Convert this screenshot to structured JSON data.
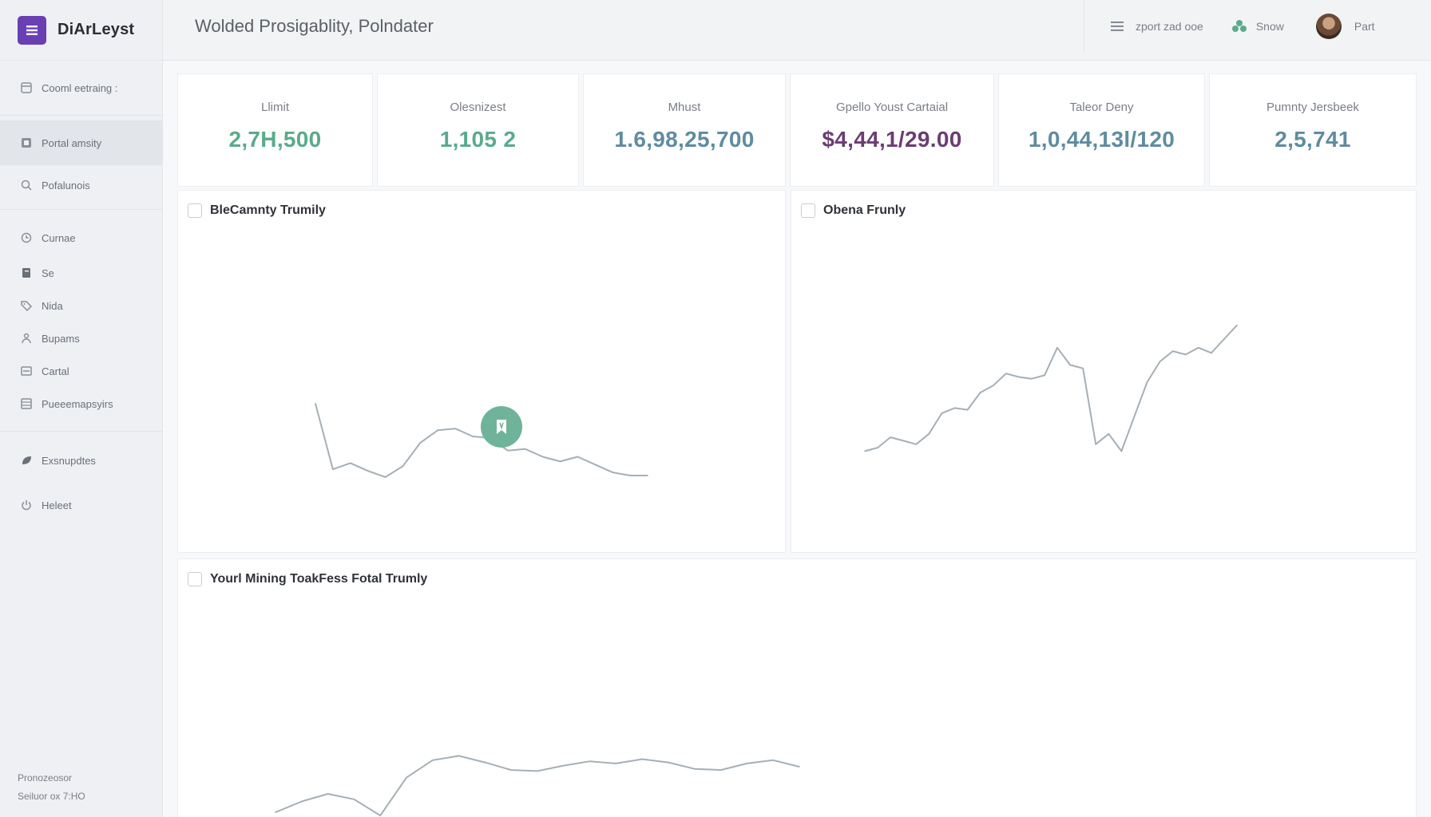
{
  "app": {
    "name": "DiArLeyst",
    "title": "Wolded Prosigablity, Polndater"
  },
  "header": {
    "actions": [
      {
        "label": "zport zad ooe",
        "icon": "menu-icon"
      },
      {
        "label": "Snow",
        "icon": "clover-icon"
      },
      {
        "label": "Part",
        "icon": "avatar"
      }
    ]
  },
  "sidebar": {
    "items": [
      {
        "label": "Cooml eetraing :",
        "icon": "grid-icon"
      },
      {
        "label": "Portal amsity",
        "icon": "dashboard-icon",
        "active": true
      },
      {
        "label": "Pofalunois",
        "icon": "search-icon"
      },
      {
        "label": "Curnae",
        "icon": "clock-icon"
      },
      {
        "label": "Se",
        "icon": "document-icon"
      },
      {
        "label": "Nida",
        "icon": "tag-icon"
      },
      {
        "label": "Bupams",
        "icon": "user-icon"
      },
      {
        "label": "Cartal",
        "icon": "list-icon"
      },
      {
        "label": "Pueeemapsyirs",
        "icon": "table-icon"
      },
      {
        "label": "Exsnupdtes",
        "icon": "leaf-icon"
      },
      {
        "label": "Heleet",
        "icon": "power-icon"
      }
    ],
    "footer": [
      "Pronozeosor",
      "Seiluor ox 7:HO"
    ]
  },
  "kpis": [
    {
      "label": "Llimit",
      "value": "2,7H,500",
      "color": "#5aab8b"
    },
    {
      "label": "Olesnizest",
      "value": "1,105 2",
      "color": "#5aab8b"
    },
    {
      "label": "Mhust",
      "value": "1.6,98,25,700",
      "color": "#5f8ca0"
    },
    {
      "label": "Gpello Youst Cartaial",
      "value": "$4,44,1/29.00",
      "color": "#6b3d73"
    },
    {
      "label": "Taleor Deny",
      "value": "1,0,44,13l/120",
      "color": "#5f8ca0"
    },
    {
      "label": "Pumnty Jersbeek",
      "value": "2,5,741",
      "color": "#5f8ca0"
    }
  ],
  "panels": [
    {
      "title": "BleCamnty Trumily",
      "marker_icon": "bookmark-icon"
    },
    {
      "title": "Obena Frunly"
    },
    {
      "title": "Yourl Mining ToakFess Fotal Trumly"
    }
  ],
  "colors": {
    "line": "#a6afb6",
    "accent": "#6fb39a",
    "brand": "#6a3fb4"
  },
  "chart_data": [
    {
      "type": "line",
      "title": "BleCamnty Trumily",
      "x": [
        0,
        1,
        2,
        3,
        4,
        5,
        6,
        7,
        8,
        9,
        10,
        11,
        12,
        13,
        14,
        15,
        16,
        17,
        18,
        19
      ],
      "series": [
        {
          "values": [
            72,
            30,
            34,
            29,
            25,
            32,
            47,
            55,
            56,
            51,
            50,
            42,
            43,
            38,
            35,
            38,
            33,
            28,
            26,
            26
          ]
        }
      ],
      "ylim": [
        0,
        100
      ]
    },
    {
      "type": "line",
      "title": "Obena Frunly",
      "x": [
        0,
        1,
        2,
        3,
        4,
        5,
        6,
        7,
        8,
        9,
        10,
        11,
        12,
        13,
        14,
        15,
        16,
        17,
        18,
        19,
        20,
        21,
        22,
        23,
        24,
        25,
        26,
        27,
        28,
        29
      ],
      "series": [
        {
          "values": [
            10,
            12,
            18,
            16,
            14,
            20,
            32,
            35,
            34,
            44,
            48,
            55,
            53,
            52,
            54,
            70,
            60,
            58,
            14,
            20,
            10,
            30,
            50,
            62,
            68,
            66,
            70,
            67,
            75,
            83
          ]
        }
      ],
      "ylim": [
        0,
        100
      ]
    },
    {
      "type": "line",
      "title": "Yourl Mining ToakFess Fotal Trumly",
      "x": [
        0,
        1,
        2,
        3,
        4,
        5,
        6,
        7,
        8,
        9,
        10,
        11,
        12,
        13,
        14,
        15,
        16,
        17,
        18,
        19,
        20
      ],
      "series": [
        {
          "values": [
            8,
            18,
            25,
            20,
            5,
            40,
            56,
            60,
            54,
            47,
            46,
            51,
            55,
            53,
            57,
            54,
            48,
            47,
            53,
            56,
            50
          ]
        }
      ],
      "ylim": [
        0,
        100
      ]
    }
  ]
}
